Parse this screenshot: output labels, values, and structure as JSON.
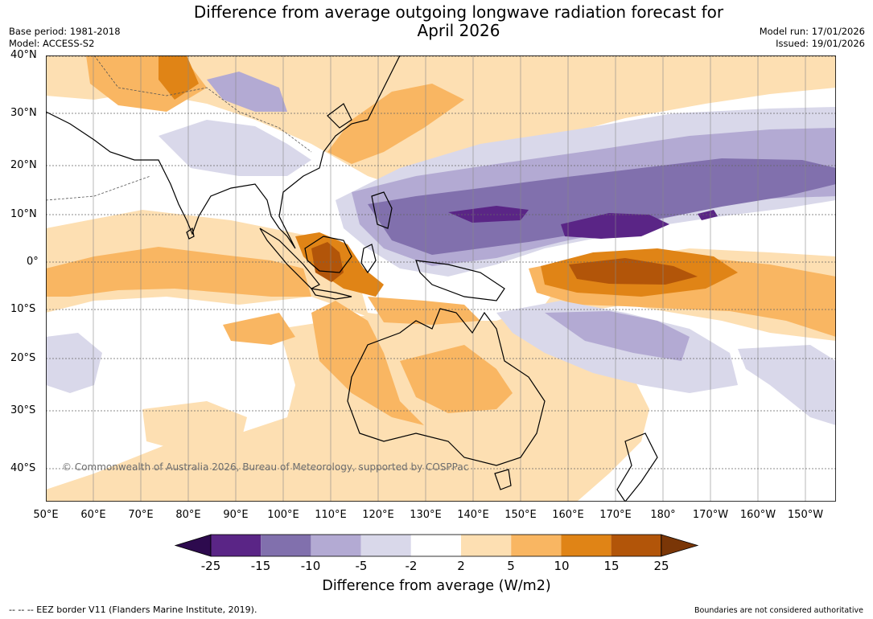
{
  "header": {
    "title_line1": "Difference from average outgoing longwave radiation forecast for",
    "title_line2": "April 2026",
    "base_period": "Base period: 1981-2018",
    "model": "Model: ACCESS-S2",
    "model_run": "Model run: 17/01/2026",
    "issued": "Issued: 19/01/2026"
  },
  "map": {
    "lat_labels": [
      "40°N",
      "30°N",
      "20°N",
      "10°N",
      "0°",
      "10°S",
      "20°S",
      "30°S",
      "40°S"
    ],
    "lon_labels": [
      "50°E",
      "60°E",
      "70°E",
      "80°E",
      "90°E",
      "100°E",
      "110°E",
      "120°E",
      "130°E",
      "140°E",
      "150°E",
      "160°E",
      "170°E",
      "180°",
      "170°W",
      "160°W",
      "150°W"
    ],
    "copyright": "© Commonwealth of Australia 2026, Bureau of Meteorology, supported by COSPPac"
  },
  "colorbar": {
    "ticks": [
      "-25",
      "-15",
      "-10",
      "-5",
      "-2",
      "2",
      "5",
      "10",
      "15",
      "25"
    ],
    "colors": [
      "#2d0a4e",
      "#5a2586",
      "#8170ad",
      "#b3aad3",
      "#d9d8ea",
      "#ffffff",
      "#fddfb2",
      "#f9b662",
      "#e08416",
      "#b25509",
      "#7a3607"
    ],
    "title": "Difference from average (W/m2)"
  },
  "footer": {
    "eez_note": "--  --  -- EEZ border V11 (Flanders Marine Institute, 2019).",
    "boundaries_note": "Boundaries are not considered authoritative"
  }
}
